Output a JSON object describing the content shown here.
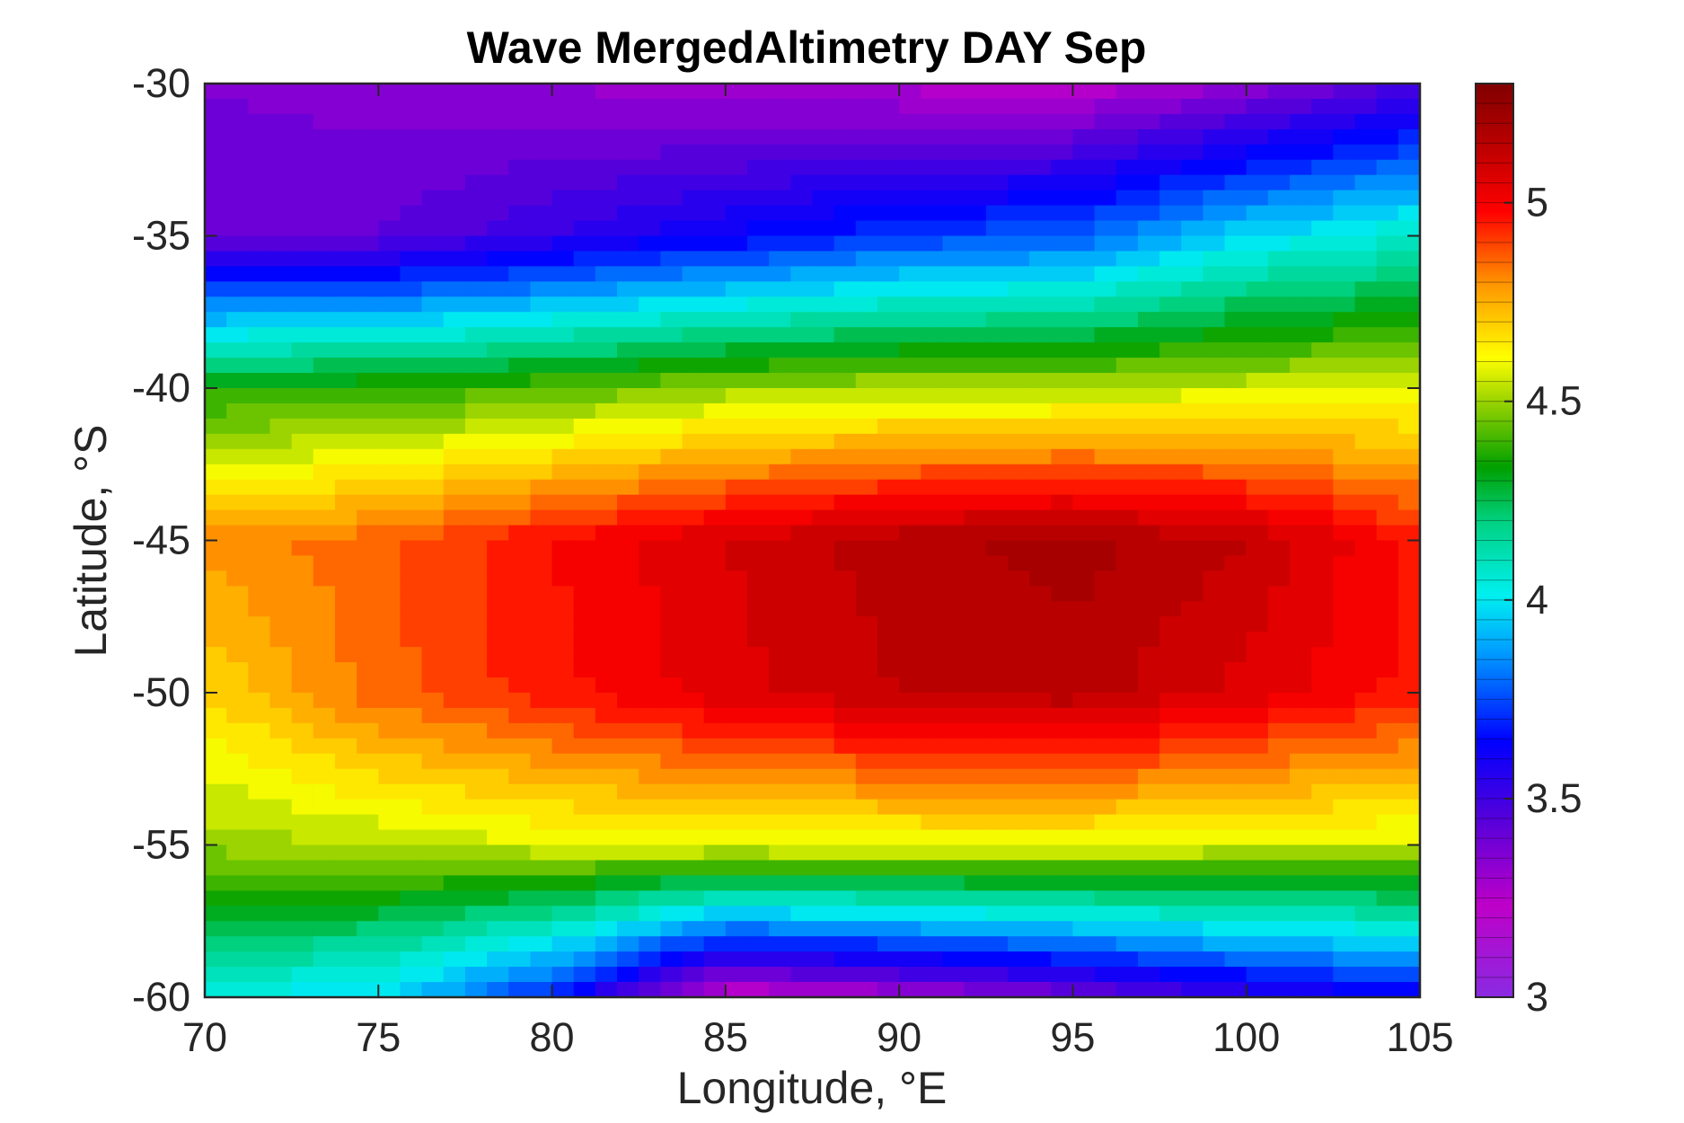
{
  "chart_data": {
    "type": "heatmap",
    "style": "filled-contour",
    "title": "Wave MergedAltimetry DAY Sep",
    "xlabel": "Longitude, °E",
    "ylabel": "Latitude, °S",
    "xlim": [
      70,
      105
    ],
    "ylim": [
      -60,
      -30
    ],
    "x_ticks": [
      70,
      75,
      80,
      85,
      90,
      95,
      100,
      105
    ],
    "y_ticks": [
      -30,
      -35,
      -40,
      -45,
      -50,
      -55,
      -60
    ],
    "x_tick_labels": [
      "70",
      "75",
      "80",
      "85",
      "90",
      "95",
      "100",
      "105"
    ],
    "y_tick_labels": [
      "-30",
      "-35",
      "-40",
      "-45",
      "-50",
      "-55",
      "-60"
    ],
    "colorbar": {
      "range": [
        3,
        5.3
      ],
      "ticks": [
        3,
        3.5,
        4,
        4.5,
        5
      ],
      "tick_labels": [
        "3",
        "3.5",
        "4",
        "4.5",
        "5"
      ],
      "colormap": "rainbow: violet-blue-cyan-green-yellow-red-darkred"
    },
    "contour_step": 0.05,
    "grid": false,
    "approx_field": {
      "x": [
        70,
        75,
        80,
        85,
        90,
        95,
        100,
        105
      ],
      "y": [
        -30,
        -35,
        -40,
        -45,
        -50,
        -55,
        -60
      ],
      "z": [
        [
          3.4,
          3.38,
          3.35,
          3.3,
          3.28,
          3.25,
          3.35,
          3.5
        ],
        [
          3.42,
          3.45,
          3.55,
          3.65,
          3.75,
          3.8,
          4.0,
          4.1
        ],
        [
          4.38,
          4.4,
          4.45,
          4.52,
          4.55,
          4.55,
          4.58,
          4.6
        ],
        [
          4.82,
          4.88,
          5.0,
          5.1,
          5.18,
          5.22,
          5.15,
          4.98
        ],
        [
          4.7,
          4.88,
          4.98,
          5.08,
          5.15,
          5.18,
          5.08,
          4.98
        ],
        [
          4.52,
          4.55,
          4.6,
          4.62,
          4.62,
          4.62,
          4.6,
          4.58
        ],
        [
          4.05,
          4.0,
          3.7,
          3.2,
          3.3,
          3.4,
          3.55,
          3.65
        ]
      ]
    }
  }
}
